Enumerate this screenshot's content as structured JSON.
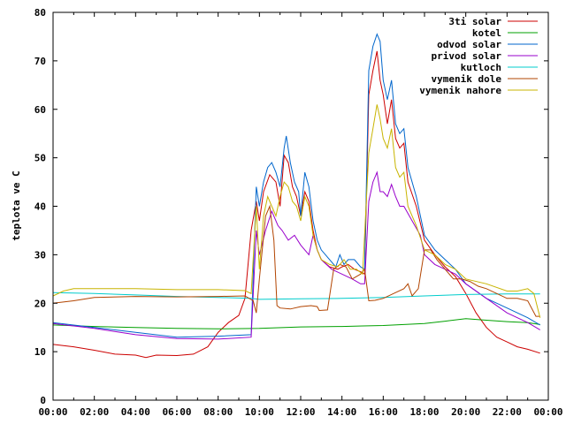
{
  "chart_data": {
    "type": "line",
    "title": "",
    "xlabel": "",
    "ylabel": "teplota ve C",
    "xlim": [
      0,
      24
    ],
    "ylim": [
      0,
      80
    ],
    "x_ticks": [
      0,
      2,
      4,
      6,
      8,
      10,
      12,
      14,
      16,
      18,
      20,
      22,
      24
    ],
    "x_tick_labels": [
      "00:00",
      "02:00",
      "04:00",
      "06:00",
      "08:00",
      "10:00",
      "12:00",
      "14:00",
      "16:00",
      "18:00",
      "20:00",
      "22:00",
      "00:00"
    ],
    "y_ticks": [
      0,
      10,
      20,
      30,
      40,
      50,
      60,
      70,
      80
    ],
    "y_tick_labels": [
      "0",
      "10",
      "20",
      "30",
      "40",
      "50",
      "60",
      "70",
      "80"
    ],
    "grid": false,
    "legend_position": "top-right",
    "series": [
      {
        "name": "3ti solar",
        "color": "#cc0000",
        "points": [
          [
            0,
            11.5
          ],
          [
            1,
            11
          ],
          [
            2,
            10.3
          ],
          [
            3,
            9.5
          ],
          [
            4,
            9.3
          ],
          [
            4.5,
            8.8
          ],
          [
            5,
            9.3
          ],
          [
            6,
            9.2
          ],
          [
            6.8,
            9.5
          ],
          [
            7.5,
            11
          ],
          [
            8,
            14
          ],
          [
            8.5,
            16
          ],
          [
            9,
            17.5
          ],
          [
            9.3,
            21
          ],
          [
            9.6,
            35
          ],
          [
            9.85,
            41
          ],
          [
            10,
            37
          ],
          [
            10.2,
            43
          ],
          [
            10.5,
            46.5
          ],
          [
            10.8,
            45
          ],
          [
            11,
            40
          ],
          [
            11.2,
            50.5
          ],
          [
            11.4,
            49
          ],
          [
            11.6,
            44
          ],
          [
            11.8,
            42
          ],
          [
            12,
            38
          ],
          [
            12.2,
            43
          ],
          [
            12.4,
            41
          ],
          [
            12.6,
            35
          ],
          [
            12.8,
            31
          ],
          [
            13,
            29
          ],
          [
            13.4,
            27.5
          ],
          [
            13.8,
            27
          ],
          [
            14,
            27.5
          ],
          [
            14.3,
            28
          ],
          [
            14.6,
            27
          ],
          [
            14.9,
            26.5
          ],
          [
            15.1,
            26
          ],
          [
            15.3,
            63
          ],
          [
            15.5,
            68
          ],
          [
            15.7,
            72
          ],
          [
            15.85,
            66
          ],
          [
            16,
            63
          ],
          [
            16.2,
            57
          ],
          [
            16.4,
            62
          ],
          [
            16.6,
            54
          ],
          [
            16.8,
            52
          ],
          [
            17,
            53
          ],
          [
            17.2,
            45
          ],
          [
            17.6,
            40
          ],
          [
            18,
            33
          ],
          [
            18.5,
            30
          ],
          [
            19,
            27.5
          ],
          [
            19.5,
            25.5
          ],
          [
            20,
            22
          ],
          [
            20.5,
            18
          ],
          [
            21,
            15
          ],
          [
            21.5,
            13
          ],
          [
            22,
            12
          ],
          [
            22.5,
            11
          ],
          [
            23,
            10.5
          ],
          [
            23.6,
            9.7
          ]
        ]
      },
      {
        "name": "kotel",
        "color": "#00a000",
        "points": [
          [
            0,
            15.5
          ],
          [
            2,
            15.2
          ],
          [
            4,
            15
          ],
          [
            6,
            14.8
          ],
          [
            8,
            14.7
          ],
          [
            10,
            14.8
          ],
          [
            12,
            15.1
          ],
          [
            14,
            15.2
          ],
          [
            15,
            15.3
          ],
          [
            16,
            15.4
          ],
          [
            18,
            15.8
          ],
          [
            19,
            16.3
          ],
          [
            20,
            16.8
          ],
          [
            21,
            16.5
          ],
          [
            22,
            16.2
          ],
          [
            23,
            16
          ],
          [
            23.6,
            15.6
          ]
        ]
      },
      {
        "name": "odvod solar",
        "color": "#0066cc",
        "points": [
          [
            0,
            16
          ],
          [
            2,
            15
          ],
          [
            4,
            14
          ],
          [
            6,
            13
          ],
          [
            8,
            13.2
          ],
          [
            9.6,
            13.5
          ],
          [
            9.85,
            44
          ],
          [
            10,
            40
          ],
          [
            10.2,
            45
          ],
          [
            10.4,
            48
          ],
          [
            10.6,
            49
          ],
          [
            10.8,
            47
          ],
          [
            11,
            44
          ],
          [
            11.2,
            52
          ],
          [
            11.3,
            54.5
          ],
          [
            11.5,
            49
          ],
          [
            11.7,
            45
          ],
          [
            11.9,
            43
          ],
          [
            12,
            38
          ],
          [
            12.2,
            47
          ],
          [
            12.4,
            44
          ],
          [
            12.6,
            37
          ],
          [
            12.8,
            33
          ],
          [
            13,
            31
          ],
          [
            13.4,
            29
          ],
          [
            13.7,
            27.5
          ],
          [
            13.9,
            30
          ],
          [
            14.1,
            28
          ],
          [
            14.3,
            29
          ],
          [
            14.6,
            29
          ],
          [
            14.9,
            27.5
          ],
          [
            15.1,
            27
          ],
          [
            15.3,
            68
          ],
          [
            15.5,
            73
          ],
          [
            15.7,
            75.5
          ],
          [
            15.85,
            74
          ],
          [
            16,
            66
          ],
          [
            16.2,
            62
          ],
          [
            16.4,
            66
          ],
          [
            16.6,
            57
          ],
          [
            16.8,
            55
          ],
          [
            17,
            56
          ],
          [
            17.2,
            48
          ],
          [
            17.6,
            42
          ],
          [
            18,
            34
          ],
          [
            18.5,
            31
          ],
          [
            19,
            29
          ],
          [
            19.5,
            27
          ],
          [
            20,
            24
          ],
          [
            21,
            21
          ],
          [
            22,
            19
          ],
          [
            23,
            17
          ],
          [
            23.6,
            15.5
          ]
        ]
      },
      {
        "name": "privod solar",
        "color": "#9900cc",
        "points": [
          [
            0,
            15.8
          ],
          [
            2,
            14.8
          ],
          [
            4,
            13.5
          ],
          [
            6,
            12.7
          ],
          [
            8,
            12.6
          ],
          [
            9.6,
            13
          ],
          [
            9.85,
            35
          ],
          [
            10,
            30
          ],
          [
            10.3,
            35
          ],
          [
            10.6,
            39
          ],
          [
            10.9,
            36
          ],
          [
            11.1,
            35
          ],
          [
            11.4,
            33
          ],
          [
            11.7,
            34
          ],
          [
            12,
            32
          ],
          [
            12.4,
            30
          ],
          [
            12.6,
            34
          ],
          [
            12.8,
            31
          ],
          [
            13,
            29
          ],
          [
            13.5,
            27
          ],
          [
            14,
            26
          ],
          [
            14.5,
            25
          ],
          [
            14.9,
            24
          ],
          [
            15.1,
            24
          ],
          [
            15.3,
            41
          ],
          [
            15.5,
            45
          ],
          [
            15.7,
            47
          ],
          [
            15.85,
            43
          ],
          [
            16,
            43
          ],
          [
            16.2,
            42
          ],
          [
            16.4,
            44.5
          ],
          [
            16.6,
            42
          ],
          [
            16.8,
            40
          ],
          [
            17,
            40
          ],
          [
            17.4,
            37
          ],
          [
            17.8,
            34
          ],
          [
            18,
            30
          ],
          [
            18.5,
            28
          ],
          [
            19,
            27
          ],
          [
            19.5,
            26
          ],
          [
            20,
            24
          ],
          [
            21,
            21
          ],
          [
            22,
            18
          ],
          [
            23,
            16
          ],
          [
            23.6,
            14.5
          ]
        ]
      },
      {
        "name": "kutloch",
        "color": "#00cccc",
        "points": [
          [
            0,
            22.2
          ],
          [
            2,
            22
          ],
          [
            4,
            21.7
          ],
          [
            6,
            21.4
          ],
          [
            8,
            21.2
          ],
          [
            9.6,
            21
          ],
          [
            10,
            20.8
          ],
          [
            12,
            20.9
          ],
          [
            14,
            21
          ],
          [
            16,
            21.2
          ],
          [
            18,
            21.5
          ],
          [
            20,
            21.8
          ],
          [
            22,
            21.9
          ],
          [
            23.6,
            21.9
          ]
        ]
      },
      {
        "name": "vymenik dole",
        "color": "#b24400",
        "points": [
          [
            0,
            20
          ],
          [
            1,
            20.5
          ],
          [
            2,
            21.2
          ],
          [
            4,
            21.4
          ],
          [
            6,
            21.3
          ],
          [
            8,
            21.4
          ],
          [
            9.3,
            21.5
          ],
          [
            9.7,
            20.5
          ],
          [
            9.85,
            18
          ],
          [
            10,
            25
          ],
          [
            10.3,
            38
          ],
          [
            10.5,
            40
          ],
          [
            10.7,
            33
          ],
          [
            10.85,
            19.5
          ],
          [
            11,
            19
          ],
          [
            11.5,
            18.8
          ],
          [
            12,
            19.3
          ],
          [
            12.5,
            19.5
          ],
          [
            12.8,
            19.3
          ],
          [
            12.9,
            18.5
          ],
          [
            13.3,
            18.6
          ],
          [
            13.6,
            27
          ],
          [
            13.9,
            28
          ],
          [
            14.2,
            27.5
          ],
          [
            14.5,
            25
          ],
          [
            14.9,
            26
          ],
          [
            15.1,
            27
          ],
          [
            15.3,
            20.5
          ],
          [
            15.6,
            20.6
          ],
          [
            16,
            21
          ],
          [
            16.5,
            22
          ],
          [
            17,
            23
          ],
          [
            17.2,
            24
          ],
          [
            17.4,
            21.5
          ],
          [
            17.7,
            23
          ],
          [
            18,
            31
          ],
          [
            18.3,
            31
          ],
          [
            18.6,
            29
          ],
          [
            19,
            27
          ],
          [
            19.4,
            25
          ],
          [
            19.8,
            25
          ],
          [
            20.2,
            24.5
          ],
          [
            20.6,
            23.5
          ],
          [
            21,
            23
          ],
          [
            21.5,
            22
          ],
          [
            22,
            21
          ],
          [
            22.5,
            21
          ],
          [
            23,
            20.5
          ],
          [
            23.4,
            17.3
          ],
          [
            23.6,
            17.3
          ]
        ]
      },
      {
        "name": "vymenik nahore",
        "color": "#c8b400",
        "points": [
          [
            0,
            21.5
          ],
          [
            0.5,
            22.5
          ],
          [
            1,
            23
          ],
          [
            2,
            23
          ],
          [
            4,
            23
          ],
          [
            6,
            22.8
          ],
          [
            8,
            22.8
          ],
          [
            9.3,
            22.6
          ],
          [
            9.6,
            22
          ],
          [
            9.85,
            40
          ],
          [
            10,
            27
          ],
          [
            10.2,
            38
          ],
          [
            10.4,
            42
          ],
          [
            10.6,
            40
          ],
          [
            10.8,
            38
          ],
          [
            11,
            42
          ],
          [
            11.2,
            45
          ],
          [
            11.4,
            44
          ],
          [
            11.6,
            41
          ],
          [
            11.8,
            40
          ],
          [
            12,
            37
          ],
          [
            12.2,
            42
          ],
          [
            12.4,
            40
          ],
          [
            12.6,
            34
          ],
          [
            12.8,
            31
          ],
          [
            13,
            29
          ],
          [
            13.4,
            28
          ],
          [
            13.8,
            27.5
          ],
          [
            14.1,
            29
          ],
          [
            14.4,
            27
          ],
          [
            14.7,
            27
          ],
          [
            15,
            26
          ],
          [
            15.3,
            51
          ],
          [
            15.5,
            56
          ],
          [
            15.7,
            61
          ],
          [
            15.85,
            58
          ],
          [
            16,
            54
          ],
          [
            16.2,
            52
          ],
          [
            16.4,
            56
          ],
          [
            16.6,
            48
          ],
          [
            16.8,
            46
          ],
          [
            17,
            47
          ],
          [
            17.2,
            40
          ],
          [
            17.6,
            36
          ],
          [
            18,
            31
          ],
          [
            18.5,
            30
          ],
          [
            19,
            28
          ],
          [
            19.5,
            27
          ],
          [
            20,
            25
          ],
          [
            21,
            24
          ],
          [
            22,
            22.5
          ],
          [
            22.5,
            22.5
          ],
          [
            23,
            23
          ],
          [
            23.3,
            22
          ],
          [
            23.6,
            17
          ]
        ]
      }
    ]
  }
}
